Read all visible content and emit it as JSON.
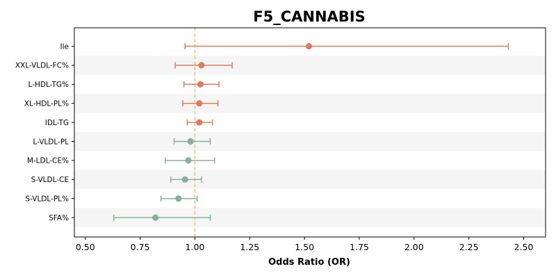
{
  "chart_data": {
    "type": "forest",
    "title": "F5_CANNABIS",
    "xlabel": "Odds Ratio (OR)",
    "ylabel": "",
    "xlim": [
      0.45,
      2.6
    ],
    "xticks": [
      0.5,
      0.75,
      1.0,
      1.25,
      1.5,
      1.75,
      2.0,
      2.25,
      2.5
    ],
    "xtick_labels": [
      "0.50",
      "0.75",
      "1.00",
      "1.25",
      "1.50",
      "1.75",
      "2.00",
      "2.25",
      "2.50"
    ],
    "reference_line": 1.0,
    "grid": false,
    "alternating_row_shading": true,
    "colors": {
      "above_one": "#e07b5f",
      "below_one": "#86b29b",
      "reference": "#f0c27f",
      "row_shade": "#f5f5f5"
    },
    "rows": [
      {
        "label": "Ile",
        "or": 1.52,
        "low": 0.955,
        "high": 2.43,
        "direction": "above"
      },
      {
        "label": "XXL-VLDL-FC%",
        "or": 1.03,
        "low": 0.91,
        "high": 1.17,
        "direction": "above"
      },
      {
        "label": "L-HDL-TG%",
        "or": 1.025,
        "low": 0.95,
        "high": 1.11,
        "direction": "above"
      },
      {
        "label": "XL-HDL-PL%",
        "or": 1.02,
        "low": 0.945,
        "high": 1.105,
        "direction": "above"
      },
      {
        "label": "IDL-TG",
        "or": 1.02,
        "low": 0.965,
        "high": 1.08,
        "direction": "above"
      },
      {
        "label": "L-VLDL-PL",
        "or": 0.98,
        "low": 0.905,
        "high": 1.07,
        "direction": "below"
      },
      {
        "label": "M-LDL-CE%",
        "or": 0.97,
        "low": 0.865,
        "high": 1.09,
        "direction": "below"
      },
      {
        "label": "S-VLDL-CE",
        "or": 0.955,
        "low": 0.89,
        "high": 1.03,
        "direction": "below"
      },
      {
        "label": "S-VLDL-PL%",
        "or": 0.925,
        "low": 0.845,
        "high": 1.01,
        "direction": "below"
      },
      {
        "label": "SFA%",
        "or": 0.82,
        "low": 0.63,
        "high": 1.07,
        "direction": "below"
      }
    ]
  }
}
